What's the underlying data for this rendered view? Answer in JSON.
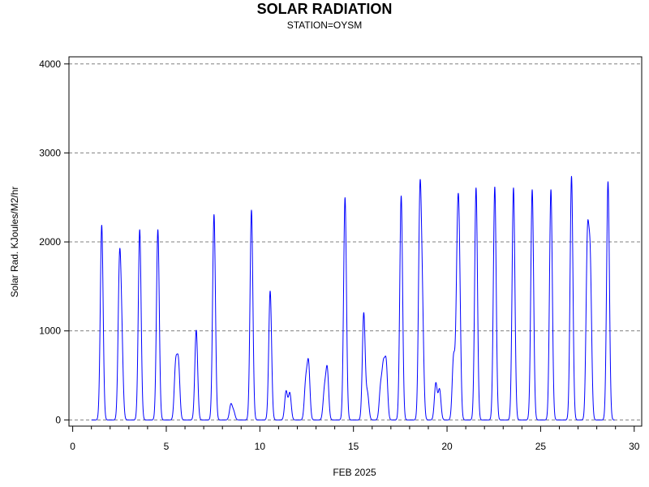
{
  "chart_data": {
    "type": "line",
    "title": "SOLAR RADIATION",
    "subtitle": "STATION=OYSM",
    "xlabel": "FEB 2025",
    "ylabel": "Solar Rad. KJoules/M2/hr",
    "xlim": [
      -0.2,
      30.4
    ],
    "ylim": [
      -70,
      4080
    ],
    "x_ticks": [
      0,
      5,
      10,
      15,
      20,
      25,
      30
    ],
    "x_tick_labels": [
      "0",
      "5",
      "10",
      "15",
      "20",
      "25",
      "30"
    ],
    "y_ticks": [
      0,
      1000,
      2000,
      3000,
      4000
    ],
    "y_tick_labels": [
      "0",
      "1000",
      "2000",
      "3000",
      "4000"
    ],
    "grid": "horizontal dashed",
    "line_color": "#0000ff",
    "x_start": 1.0,
    "x_end": 28.95,
    "daily_peaks": [
      {
        "day": 1,
        "peaks": [
          [
            1.55,
            2190
          ]
        ]
      },
      {
        "day": 2,
        "peaks": [
          [
            2.5,
            1660
          ],
          [
            2.62,
            800
          ]
        ]
      },
      {
        "day": 3,
        "peaks": [
          [
            3.58,
            2140
          ]
        ]
      },
      {
        "day": 4,
        "peaks": [
          [
            4.55,
            2140
          ]
        ]
      },
      {
        "day": 5,
        "peaks": [
          [
            5.5,
            600
          ],
          [
            5.65,
            620
          ]
        ]
      },
      {
        "day": 6,
        "peaks": [
          [
            6.6,
            1010
          ]
        ]
      },
      {
        "day": 7,
        "peaks": [
          [
            7.55,
            2310
          ]
        ]
      },
      {
        "day": 8,
        "peaks": [
          [
            8.45,
            170
          ],
          [
            8.6,
            90
          ]
        ]
      },
      {
        "day": 9,
        "peaks": [
          [
            9.55,
            2360
          ]
        ]
      },
      {
        "day": 10,
        "peaks": [
          [
            10.55,
            1450
          ]
        ]
      },
      {
        "day": 11,
        "peaks": [
          [
            11.4,
            320
          ],
          [
            11.6,
            300
          ]
        ]
      },
      {
        "day": 12,
        "peaks": [
          [
            12.45,
            410
          ],
          [
            12.6,
            620
          ]
        ]
      },
      {
        "day": 13,
        "peaks": [
          [
            13.45,
            320
          ],
          [
            13.6,
            560
          ]
        ]
      },
      {
        "day": 14,
        "peaks": [
          [
            14.55,
            2500
          ]
        ]
      },
      {
        "day": 15,
        "peaks": [
          [
            15.55,
            1200
          ],
          [
            15.75,
            290
          ]
        ]
      },
      {
        "day": 16,
        "peaks": [
          [
            16.45,
            350
          ],
          [
            16.6,
            550
          ],
          [
            16.75,
            610
          ]
        ]
      },
      {
        "day": 17,
        "peaks": [
          [
            17.55,
            2520
          ]
        ]
      },
      {
        "day": 18,
        "peaks": [
          [
            18.55,
            2400
          ],
          [
            18.68,
            1140
          ]
        ]
      },
      {
        "day": 19,
        "peaks": [
          [
            19.4,
            410
          ],
          [
            19.6,
            340
          ]
        ]
      },
      {
        "day": 20,
        "peaks": [
          [
            20.35,
            700
          ],
          [
            20.55,
            1580
          ],
          [
            20.65,
            1600
          ]
        ]
      },
      {
        "day": 21,
        "peaks": [
          [
            21.55,
            2610
          ]
        ]
      },
      {
        "day": 22,
        "peaks": [
          [
            22.55,
            2620
          ]
        ]
      },
      {
        "day": 23,
        "peaks": [
          [
            23.55,
            2610
          ]
        ]
      },
      {
        "day": 24,
        "peaks": [
          [
            24.55,
            2590
          ]
        ]
      },
      {
        "day": 25,
        "peaks": [
          [
            25.55,
            2590
          ]
        ]
      },
      {
        "day": 26,
        "peaks": [
          [
            26.65,
            2740
          ]
        ]
      },
      {
        "day": 27,
        "peaks": [
          [
            27.5,
            1930
          ],
          [
            27.65,
            1680
          ]
        ]
      },
      {
        "day": 28,
        "peaks": [
          [
            28.6,
            2680
          ]
        ]
      }
    ]
  }
}
